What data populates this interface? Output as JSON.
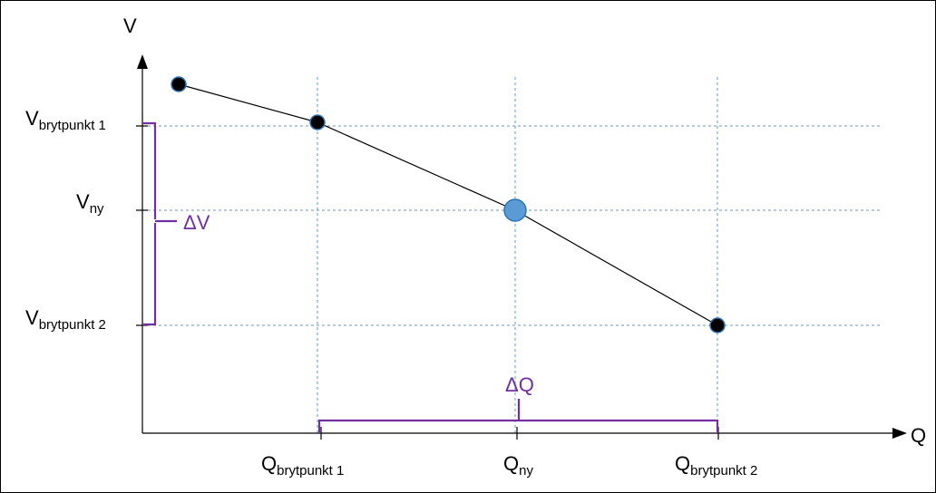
{
  "axes": {
    "y_label": "V",
    "x_label": "Q"
  },
  "y_ticks": [
    {
      "main": "V",
      "sub": "brytpunkt 1"
    },
    {
      "main": "V",
      "sub": "ny"
    },
    {
      "main": "V",
      "sub": "brytpunkt 2"
    }
  ],
  "x_ticks": [
    {
      "main": "Q",
      "sub": "brytpunkt 1"
    },
    {
      "main": "Q",
      "sub": "ny"
    },
    {
      "main": "Q",
      "sub": "brytpunkt 2"
    }
  ],
  "annotations": {
    "delta_v": "ΔV",
    "delta_q": "ΔQ"
  },
  "colors": {
    "axis": "#000000",
    "gridline": "#5b9bd5",
    "curve": "#000000",
    "point_fill": "#000000",
    "highlight_point": "#5b9bd5",
    "delta": "#7030a0"
  }
}
